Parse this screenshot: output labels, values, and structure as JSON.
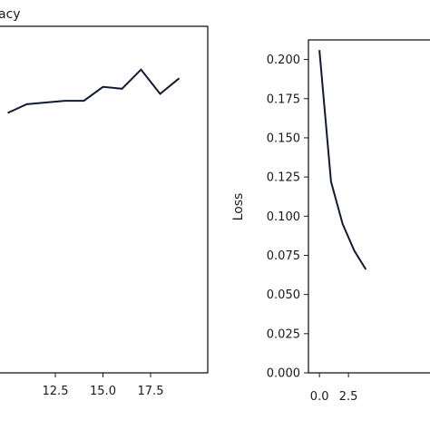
{
  "chart_data": [
    {
      "type": "line",
      "title": "",
      "ylabel": "Accuracy",
      "ylabel_visible_fragment": "acy",
      "xlabel": "",
      "x": [
        10,
        11,
        12,
        13,
        14,
        15,
        16,
        17,
        18,
        19
      ],
      "series": [
        {
          "values": [
            0.9,
            0.905,
            0.906,
            0.907,
            0.907,
            0.915,
            0.914,
            0.925,
            0.911,
            0.92
          ]
        }
      ],
      "xticks": [
        "12.5",
        "15.0",
        "17.5"
      ],
      "xtick_values": [
        12.5,
        15.0,
        17.5
      ],
      "xlim": [
        9.5,
        20.5
      ],
      "ylim": [
        0.75,
        0.95
      ],
      "grid": false,
      "line_color": "#0f1a33"
    },
    {
      "type": "line",
      "title": "",
      "ylabel": "Loss",
      "xlabel": "",
      "x": [
        0,
        1,
        2,
        3,
        4
      ],
      "series": [
        {
          "values": [
            0.206,
            0.122,
            0.095,
            0.078,
            0.066
          ]
        }
      ],
      "yticks": [
        "0.000",
        "0.025",
        "0.050",
        "0.075",
        "0.100",
        "0.125",
        "0.150",
        "0.175",
        "0.200"
      ],
      "ytick_values": [
        0.0,
        0.025,
        0.05,
        0.075,
        0.1,
        0.125,
        0.15,
        0.175,
        0.2
      ],
      "xticks": [
        "0.0",
        "2.5"
      ],
      "xtick_values": [
        0.0,
        2.5
      ],
      "xlim": [
        -0.95,
        10
      ],
      "ylim": [
        0.0,
        0.2125
      ],
      "grid": false,
      "line_color": "#0f1a33"
    }
  ]
}
